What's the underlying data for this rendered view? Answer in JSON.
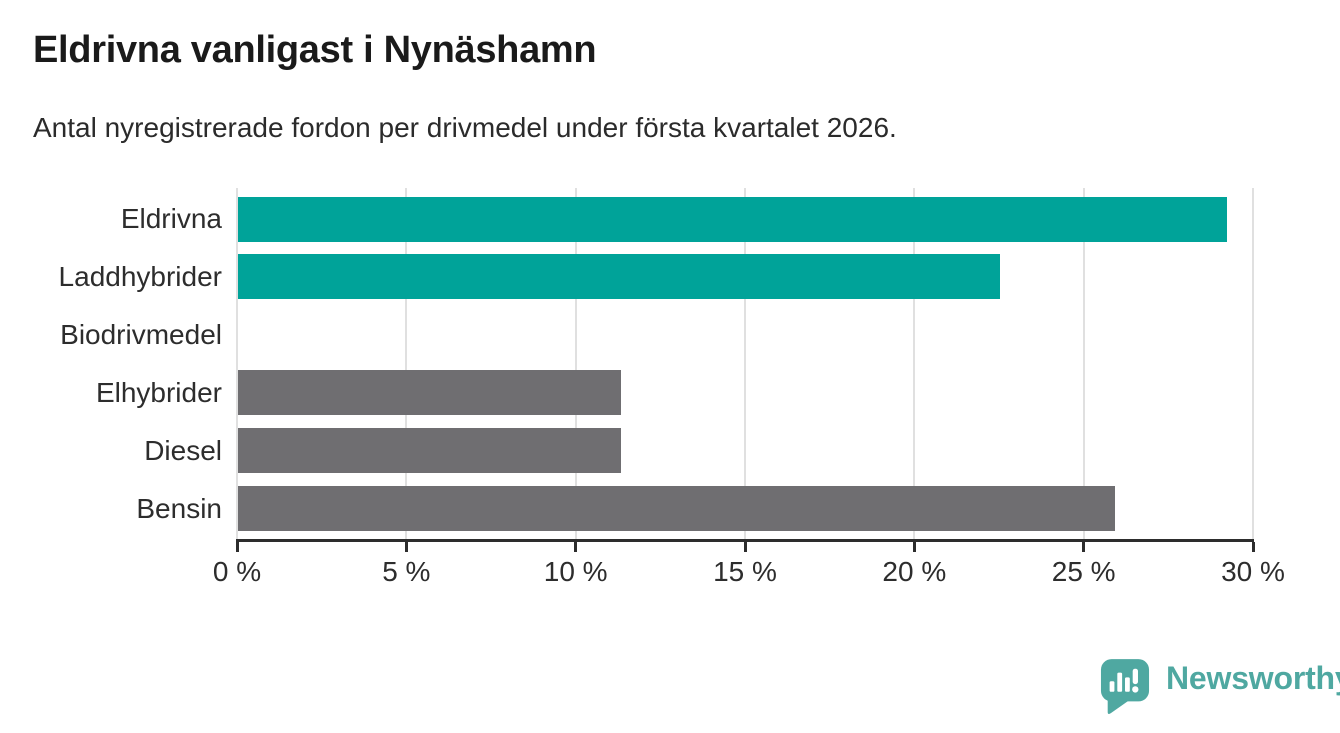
{
  "header": {
    "title": "Eldrivna vanligast i Nynäshamn",
    "subtitle": "Antal nyregistrerade fordon per drivmedel under första kvartalet 2026."
  },
  "chart_data": {
    "type": "bar",
    "orientation": "horizontal",
    "title": "Eldrivna vanligast i Nynäshamn",
    "subtitle": "Antal nyregistrerade fordon per drivmedel under första kvartalet 2026.",
    "categories": [
      "Eldrivna",
      "Laddhybrider",
      "Biodrivmedel",
      "Elhybrider",
      "Diesel",
      "Bensin"
    ],
    "values": [
      29.2,
      22.5,
      0,
      11.3,
      11.3,
      25.9
    ],
    "unit": "%",
    "bar_colors": [
      "#00a399",
      "#00a399",
      "#6f6e71",
      "#6f6e71",
      "#6f6e71",
      "#6f6e71"
    ],
    "xlim": [
      0,
      30
    ],
    "xticks": [
      0,
      5,
      10,
      15,
      20,
      25,
      30
    ],
    "xtick_labels": [
      "0 %",
      "5 %",
      "10 %",
      "15 %",
      "20 %",
      "25 %",
      "30 %"
    ],
    "grid": "vertical",
    "legend": "none",
    "colors": {
      "accent_teal": "#00a399",
      "neutral_gray": "#6f6e71",
      "gridline": "#e0e0e0",
      "axis": "#2d2d2d",
      "tick_text": "#2d2d2d",
      "title_text": "#1a1a1a"
    }
  },
  "footer": {
    "brand": "Newsworthy",
    "brand_color": "#4fa8a1",
    "logo_icon": "speech-bubble-bar-chart-exclamation"
  }
}
